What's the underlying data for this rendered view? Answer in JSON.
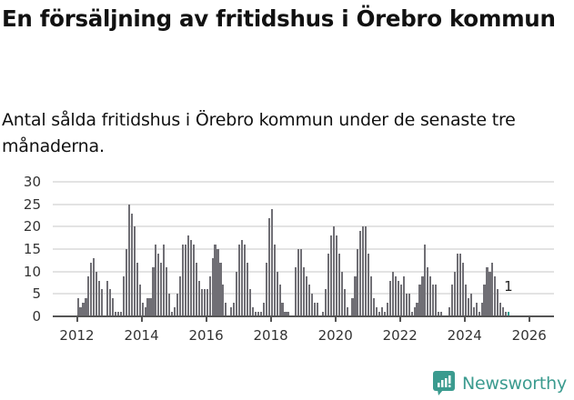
{
  "header": {
    "title": "En försäljning av fritidshus i Örebro kommun",
    "subtitle": "Antal sålda fritidshus i Örebro kommun under de senaste tre månaderna."
  },
  "branding": {
    "logo_text": "Newsworthy",
    "logo_icon": "bar-chart-speech-bubble-icon",
    "color": "#3b9b8f"
  },
  "colors": {
    "bar": "#706f75",
    "highlight": "#2a9d8f",
    "grid": "#e3e3e3",
    "axis": "#555555"
  },
  "chart_data": {
    "type": "bar",
    "title": "En försäljning av fritidshus i Örebro kommun",
    "subtitle": "Antal sålda fritidshus i Örebro kommun under de senaste tre månaderna.",
    "xlabel": "",
    "ylabel": "",
    "ylim": [
      0,
      30
    ],
    "yticks": [
      0,
      5,
      10,
      15,
      20,
      25,
      30
    ],
    "xticks": [
      "2012",
      "2014",
      "2016",
      "2018",
      "2020",
      "2022",
      "2024",
      "2026"
    ],
    "grid": true,
    "legend": null,
    "start_month": "2012-01",
    "frequency": "monthly",
    "annotation": {
      "label": "1",
      "at": "last"
    },
    "values": [
      4,
      2,
      3,
      4,
      9,
      12,
      13,
      10,
      8,
      6,
      0,
      8,
      6,
      4,
      1,
      1,
      1,
      9,
      15,
      25,
      23,
      20,
      12,
      7,
      3,
      2,
      4,
      4,
      11,
      16,
      14,
      12,
      16,
      11,
      5,
      1,
      2,
      5,
      9,
      16,
      16,
      18,
      17,
      16,
      12,
      8,
      6,
      6,
      6,
      9,
      13,
      16,
      15,
      12,
      7,
      3,
      0,
      2,
      3,
      10,
      16,
      17,
      16,
      12,
      6,
      2,
      1,
      1,
      1,
      3,
      12,
      22,
      24,
      16,
      10,
      7,
      3,
      1,
      1,
      0,
      0,
      11,
      15,
      15,
      11,
      9,
      7,
      5,
      3,
      3,
      0,
      1,
      6,
      14,
      18,
      20,
      18,
      14,
      10,
      6,
      2,
      0,
      4,
      9,
      15,
      19,
      20,
      20,
      14,
      9,
      4,
      2,
      1,
      2,
      1,
      3,
      8,
      10,
      9,
      8,
      7,
      9,
      5,
      5,
      1,
      2,
      3,
      7,
      9,
      16,
      11,
      9,
      7,
      7,
      1,
      1,
      0,
      0,
      2,
      7,
      10,
      14,
      14,
      12,
      7,
      4,
      5,
      2,
      3,
      1,
      3,
      7,
      11,
      10,
      12,
      9,
      6,
      3,
      2,
      1,
      1
    ]
  }
}
